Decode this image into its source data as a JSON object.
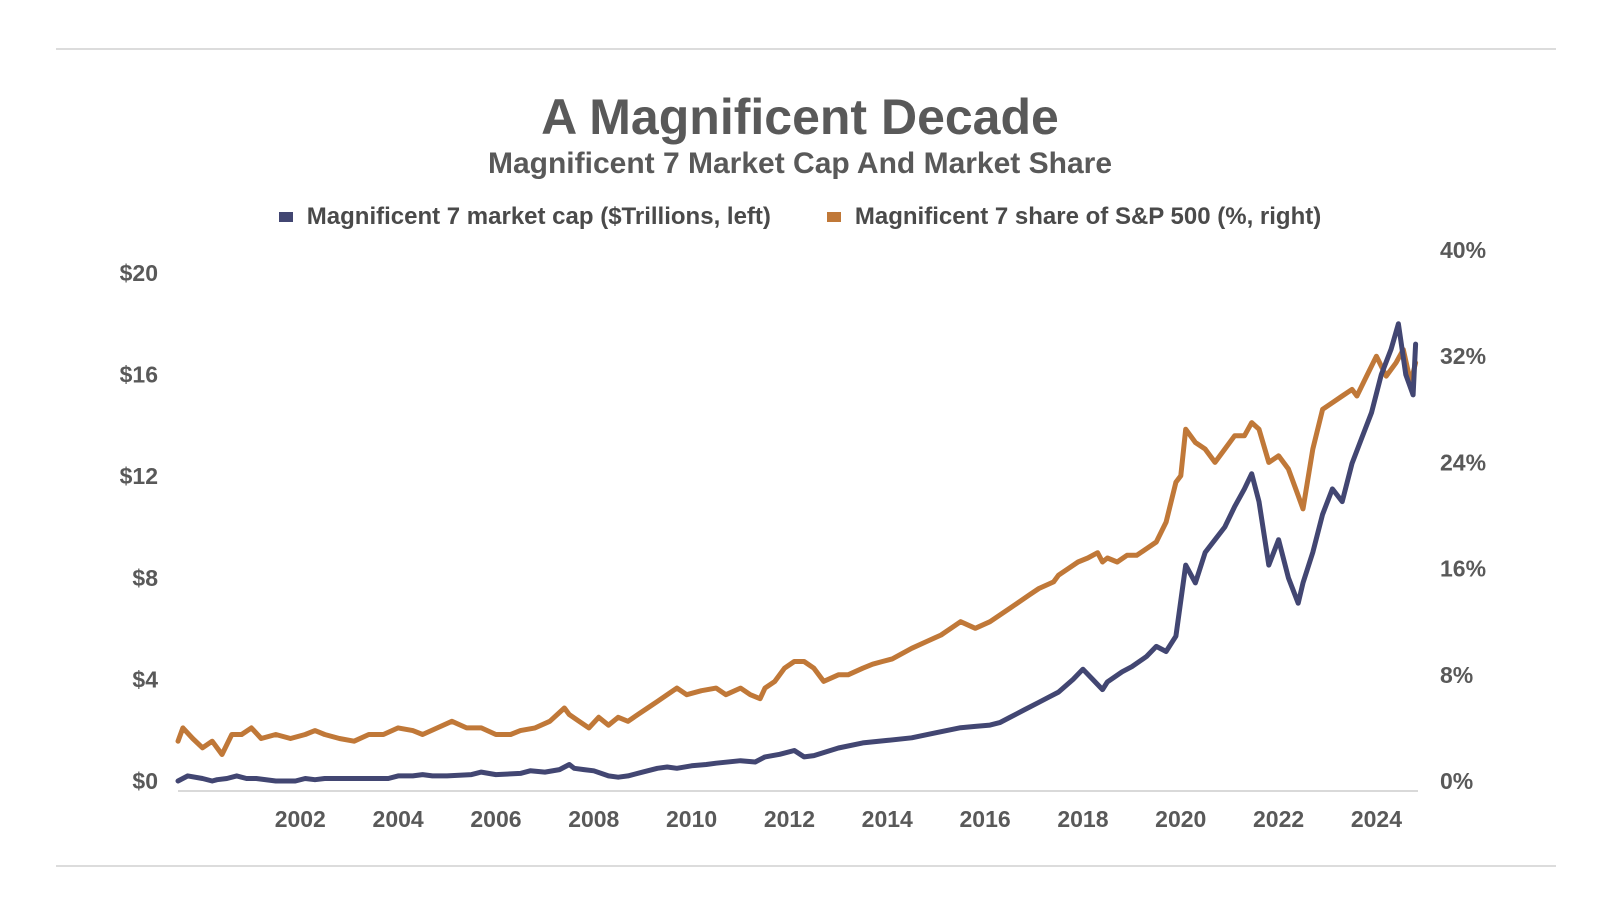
{
  "chart_data": {
    "type": "line",
    "title": "A Magnificent Decade",
    "subtitle": "Magnificent 7 Market Cap And Market Share",
    "x_ticks": [
      "2002",
      "2004",
      "2006",
      "2008",
      "2010",
      "2012",
      "2014",
      "2016",
      "2018",
      "2020",
      "2022",
      "2024"
    ],
    "xlim": [
      2000.0,
      2025.35
    ],
    "y_left": {
      "ticks": [
        "$0",
        "$4",
        "$8",
        "$12",
        "$16",
        "$20"
      ],
      "ylim": [
        0,
        20
      ]
    },
    "y_right": {
      "ticks": [
        "0%",
        "8%",
        "16%",
        "24%",
        "32%",
        "40%"
      ],
      "ylim": [
        0,
        40
      ]
    },
    "series": [
      {
        "name": "Magnificent 7 market cap ($Trillions, left)",
        "axis": "left",
        "color": "#424672",
        "x": [
          2000.0,
          2000.2,
          2000.5,
          2000.7,
          2000.8,
          2001.0,
          2001.2,
          2001.4,
          2001.6,
          2002.0,
          2002.4,
          2002.6,
          2002.8,
          2003.0,
          2003.5,
          2004.0,
          2004.3,
          2004.5,
          2004.8,
          2005.0,
          2005.2,
          2005.5,
          2006.0,
          2006.2,
          2006.5,
          2007.0,
          2007.2,
          2007.5,
          2007.8,
          2008.0,
          2008.1,
          2008.3,
          2008.5,
          2008.8,
          2009.0,
          2009.2,
          2009.5,
          2009.8,
          2010.0,
          2010.2,
          2010.5,
          2010.8,
          2011.0,
          2011.5,
          2011.8,
          2012.0,
          2012.3,
          2012.6,
          2012.8,
          2013.0,
          2013.5,
          2014.0,
          2014.5,
          2015.0,
          2015.5,
          2016.0,
          2016.3,
          2016.6,
          2016.8,
          2017.0,
          2017.3,
          2017.6,
          2017.8,
          2018.0,
          2018.3,
          2018.5,
          2018.7,
          2018.9,
          2019.0,
          2019.3,
          2019.5,
          2019.8,
          2020.0,
          2020.2,
          2020.4,
          2020.6,
          2020.8,
          2021.0,
          2021.2,
          2021.4,
          2021.6,
          2021.8,
          2021.95,
          2022.1,
          2022.3,
          2022.5,
          2022.7,
          2022.9,
          2023.0,
          2023.2,
          2023.4,
          2023.6,
          2023.8,
          2024.0,
          2024.2,
          2024.4,
          2024.6,
          2024.8,
          2024.95,
          2025.1,
          2025.25,
          2025.3
        ],
        "values": [
          0.0,
          0.2,
          0.1,
          0.0,
          0.05,
          0.1,
          0.2,
          0.1,
          0.1,
          0.0,
          0.0,
          0.1,
          0.05,
          0.1,
          0.1,
          0.1,
          0.1,
          0.2,
          0.2,
          0.25,
          0.2,
          0.2,
          0.25,
          0.35,
          0.25,
          0.3,
          0.4,
          0.35,
          0.45,
          0.65,
          0.5,
          0.45,
          0.4,
          0.2,
          0.15,
          0.2,
          0.35,
          0.5,
          0.55,
          0.5,
          0.6,
          0.65,
          0.7,
          0.8,
          0.75,
          0.95,
          1.05,
          1.2,
          0.95,
          1.0,
          1.3,
          1.5,
          1.6,
          1.7,
          1.9,
          2.1,
          2.15,
          2.2,
          2.3,
          2.5,
          2.8,
          3.1,
          3.3,
          3.5,
          4.0,
          4.4,
          4.0,
          3.6,
          3.9,
          4.3,
          4.5,
          4.9,
          5.3,
          5.1,
          5.7,
          8.5,
          7.8,
          9.0,
          9.5,
          10.0,
          10.8,
          11.5,
          12.1,
          11.0,
          8.5,
          9.5,
          8.0,
          7.0,
          7.8,
          9.0,
          10.5,
          11.5,
          11.0,
          12.5,
          13.5,
          14.5,
          16.0,
          17.0,
          18.0,
          16.0,
          15.2,
          17.2
        ]
      },
      {
        "name": "Magnificent 7 share of S&P 500 (%, right)",
        "axis": "right",
        "color": "#C07838",
        "x": [
          2000.0,
          2000.1,
          2000.3,
          2000.5,
          2000.7,
          2000.9,
          2001.1,
          2001.3,
          2001.5,
          2001.7,
          2002.0,
          2002.3,
          2002.6,
          2002.8,
          2003.0,
          2003.3,
          2003.6,
          2003.9,
          2004.2,
          2004.5,
          2004.8,
          2005.0,
          2005.3,
          2005.6,
          2005.9,
          2006.2,
          2006.5,
          2006.8,
          2007.0,
          2007.3,
          2007.6,
          2007.9,
          2008.0,
          2008.2,
          2008.4,
          2008.6,
          2008.8,
          2009.0,
          2009.2,
          2009.4,
          2009.6,
          2009.8,
          2010.0,
          2010.2,
          2010.4,
          2010.7,
          2011.0,
          2011.2,
          2011.5,
          2011.7,
          2011.9,
          2012.0,
          2012.2,
          2012.4,
          2012.6,
          2012.8,
          2013.0,
          2013.2,
          2013.5,
          2013.7,
          2014.0,
          2014.2,
          2014.4,
          2014.6,
          2015.0,
          2015.3,
          2015.6,
          2015.8,
          2016.0,
          2016.3,
          2016.6,
          2016.8,
          2017.0,
          2017.2,
          2017.4,
          2017.6,
          2017.9,
          2018.0,
          2018.2,
          2018.4,
          2018.6,
          2018.8,
          2018.9,
          2019.0,
          2019.2,
          2019.4,
          2019.6,
          2019.8,
          2020.0,
          2020.2,
          2020.4,
          2020.5,
          2020.6,
          2020.8,
          2021.0,
          2021.2,
          2021.4,
          2021.6,
          2021.8,
          2021.95,
          2022.1,
          2022.3,
          2022.5,
          2022.7,
          2022.9,
          2023.0,
          2023.2,
          2023.4,
          2023.6,
          2023.8,
          2024.0,
          2024.1,
          2024.3,
          2024.5,
          2024.7,
          2024.9,
          2025.05,
          2025.2,
          2025.3
        ],
        "values": [
          3.0,
          4.0,
          3.2,
          2.5,
          3.0,
          2.0,
          3.5,
          3.5,
          4.0,
          3.2,
          3.5,
          3.2,
          3.5,
          3.8,
          3.5,
          3.2,
          3.0,
          3.5,
          3.5,
          4.0,
          3.8,
          3.5,
          4.0,
          4.5,
          4.0,
          4.0,
          3.5,
          3.5,
          3.8,
          4.0,
          4.5,
          5.5,
          5.0,
          4.5,
          4.0,
          4.8,
          4.2,
          4.8,
          4.5,
          5.0,
          5.5,
          6.0,
          6.5,
          7.0,
          6.5,
          6.8,
          7.0,
          6.5,
          7.0,
          6.5,
          6.2,
          7.0,
          7.5,
          8.5,
          9.0,
          9.0,
          8.5,
          7.5,
          8.0,
          8.0,
          8.5,
          8.8,
          9.0,
          9.2,
          10.0,
          10.5,
          11.0,
          11.5,
          12.0,
          11.5,
          12.0,
          12.5,
          13.0,
          13.5,
          14.0,
          14.5,
          15.0,
          15.5,
          16.0,
          16.5,
          16.8,
          17.2,
          16.5,
          16.8,
          16.5,
          17.0,
          17.0,
          17.5,
          18.0,
          19.5,
          22.5,
          23.0,
          26.5,
          25.5,
          25.0,
          24.0,
          25.0,
          26.0,
          26.0,
          27.0,
          26.5,
          24.0,
          24.5,
          23.5,
          21.5,
          20.5,
          25.0,
          28.0,
          28.5,
          29.0,
          29.5,
          29.0,
          30.5,
          32.0,
          30.5,
          31.5,
          32.5,
          30.0,
          31.5
        ]
      }
    ]
  }
}
